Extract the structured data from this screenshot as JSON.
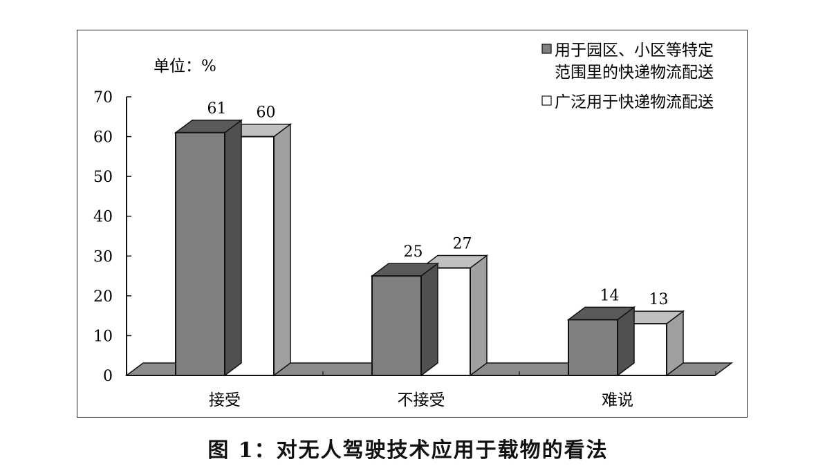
{
  "chart_data": {
    "type": "bar",
    "style": "3d-clustered-column",
    "title": "图 1：对无人驾驶技术应用于载物的看法",
    "unit_label": "单位：%",
    "categories": [
      "接受",
      "不接受",
      "难说"
    ],
    "series": [
      {
        "name": "用于园区、小区等特定范围里的快递物流配送",
        "color": "#808080",
        "values": [
          61,
          25,
          14
        ]
      },
      {
        "name": "广泛用于快递物流配送",
        "color": "#ffffff",
        "values": [
          60,
          27,
          13
        ]
      }
    ],
    "xlabel": "",
    "ylabel": "",
    "ylim": [
      0,
      70
    ],
    "yticks": [
      0,
      10,
      20,
      30,
      40,
      50,
      60,
      70
    ],
    "grid": false,
    "legend_position": "top-right",
    "data_labels": true
  },
  "legend": {
    "series1_line1": "用于园区、小区等特定",
    "series1_line2": "范围里的快递物流配送",
    "series2": "广泛用于快递物流配送"
  },
  "unit": "单位：%",
  "caption": "图 1：对无人驾驶技术应用于载物的看法"
}
